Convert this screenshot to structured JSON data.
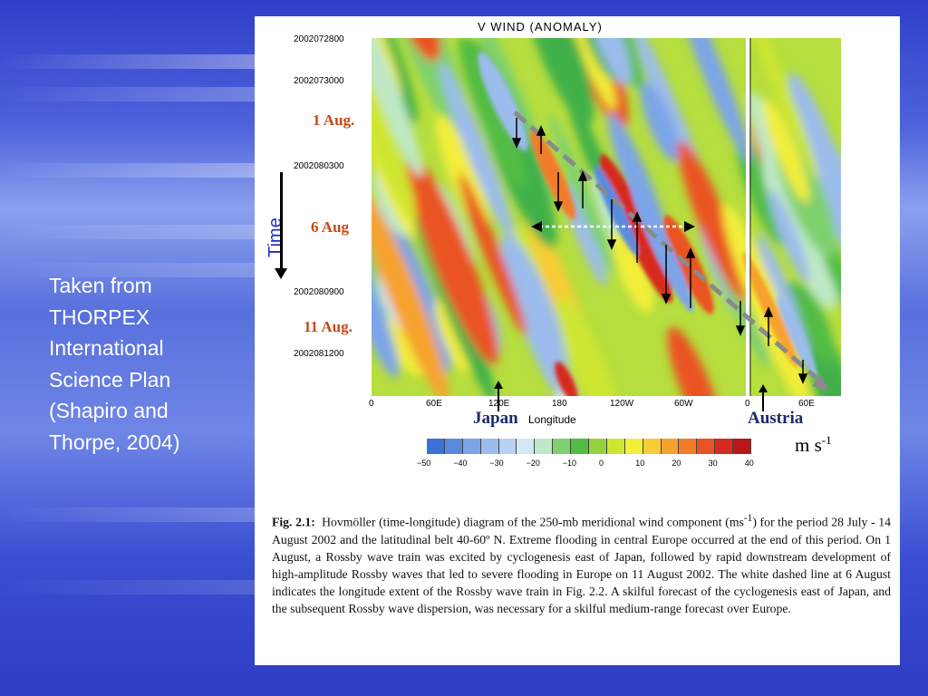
{
  "side_caption": [
    "Taken from",
    "THORPEX",
    "International",
    "Science Plan",
    "(Shapiro and",
    "Thorpe, 2004)"
  ],
  "time_label": "Time",
  "figure": {
    "title": "V WIND  (ANOMALY)",
    "y_tick_labels": [
      "2002072800",
      "2002073000",
      "2002080300",
      "2002080900",
      "2002081200"
    ],
    "date_annotations": [
      "1 Aug.",
      "6 Aug",
      "11 Aug."
    ],
    "x_tick_labels": [
      "0",
      "60E",
      "120E",
      "180",
      "120W",
      "60W",
      "0",
      "60E"
    ],
    "x_axis_label": "Longitude",
    "region_labels": {
      "left": "Japan",
      "right": "Austria"
    },
    "colorbar": {
      "units_base": "m s",
      "units_exp": "-1",
      "ticks": [
        "−50",
        "−40",
        "−30",
        "−20",
        "−10",
        "0",
        "10",
        "20",
        "30",
        "40"
      ],
      "colors": [
        "#3b72d8",
        "#5a8ae0",
        "#7ba4e8",
        "#9bbcec",
        "#b7d2f0",
        "#d4e8f6",
        "#bfe8c6",
        "#7fd06e",
        "#52bc44",
        "#96d23e",
        "#cee632",
        "#f2ee3a",
        "#f8cc34",
        "#f6a22e",
        "#f27c2a",
        "#ea5224",
        "#d72a1e",
        "#b8181a"
      ]
    }
  },
  "caption": {
    "label": "Fig. 2.1:",
    "text_before_sup": "Hovmöller (time-longitude) diagram of the 250-mb meridional wind component (ms",
    "sup": "-1",
    "text_after_sup": ") for the period 28 July - 14 August 2002 and the latitudinal belt 40-60º N. Extreme flooding in central Europe occurred at the end of this period.  On 1 August, a Rossby wave train was excited by cyclogenesis east of Japan, followed by rapid downstream development of high-amplitude Rossby waves that led to severe flooding in Europe on 11 August 2002. The white dashed line at 6 August indicates the longitude extent of the Rossby wave train in Fig. 2.2.  A skilful forecast of the cyclogenesis east of Japan, and the subsequent Rossby wave dispersion, was necessary for a skilful medium-range forecast over Europe."
  }
}
